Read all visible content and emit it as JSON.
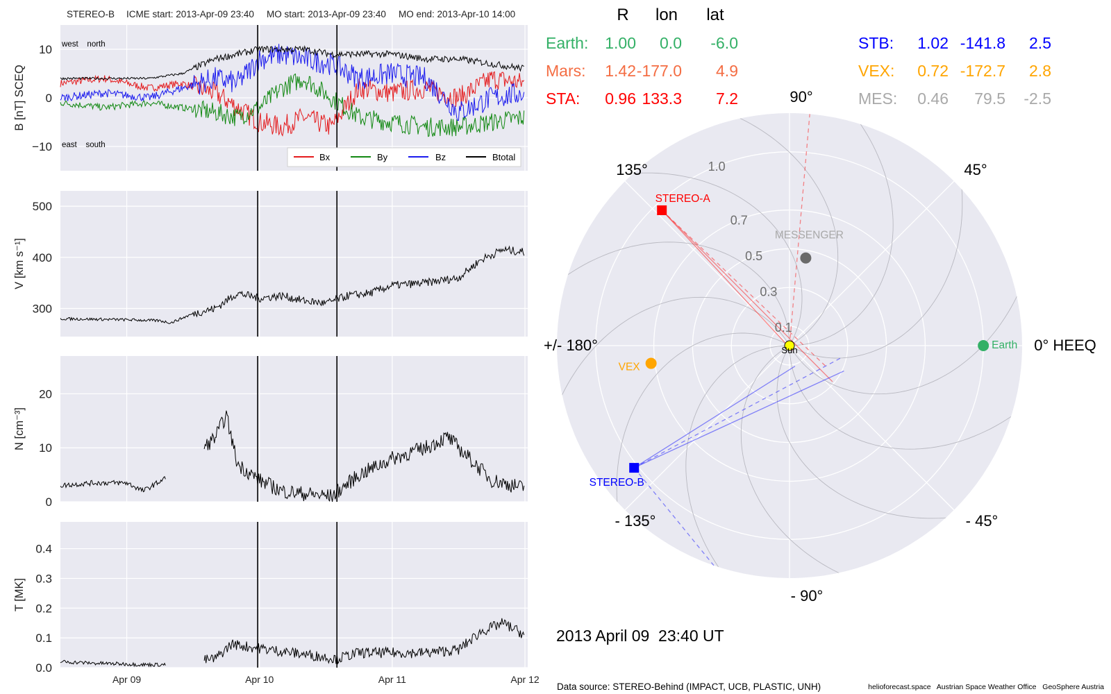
{
  "header": {
    "spacecraft": "STEREO-B",
    "icme_start": "ICME start: 2013-Apr-09 23:40",
    "mo_start": "MO start: 2013-Apr-09 23:40",
    "mo_end": "MO end: 2013-Apr-10 14:00"
  },
  "footer": {
    "timestamp": "2013 April 09  23:40 UT",
    "data_source": "Data source: STEREO-Behind (IMPACT, UCB, PLASTIC, UNH)",
    "credits": "helioforecast.space   Austrian Space Weather Office   GeoSphere Austria"
  },
  "colors": {
    "panel_bg": "#e9e9f1",
    "bx": "#e41a1c",
    "by": "#118811",
    "bz": "#1a1aee",
    "btotal": "#000000",
    "earth": "#33b066",
    "mars": "#f46d43",
    "sta": "#ff0000",
    "stb": "#0000ff",
    "vex": "#ffa500",
    "mes": "#a9a9a9",
    "sun": "#ffff00"
  },
  "chart_data": [
    {
      "type": "line",
      "name": "magnetic-field",
      "ylabel": "B [nT] SCEQ",
      "ylim": [
        -15,
        15
      ],
      "yticks": [
        -10,
        0,
        10
      ],
      "ytick_labels": [
        "−10",
        "0",
        "10"
      ],
      "annotations": {
        "top_left": "west    north",
        "bottom_left": "east    south"
      },
      "legend": [
        "Bx",
        "By",
        "Bz",
        "Btotal"
      ],
      "legend_position": "lower-right",
      "grid": true,
      "x_range_days": "2013-04-08 12:00 to 2013-04-12 00:00",
      "xticks": [
        "Apr 09",
        "Apr 10",
        "Apr 11",
        "Apr 12"
      ],
      "vlines": [
        "2013-04-09 23:40",
        "2013-04-10 14:00"
      ],
      "series": [
        {
          "name": "Bx",
          "x": [
            "04-08 12:00",
            "04-08 20:00",
            "04-09 04:00",
            "04-09 10:00",
            "04-09 16:00",
            "04-09 20:00",
            "04-10 00:00",
            "04-10 04:00",
            "04-10 08:00",
            "04-10 13:00",
            "04-10 18:00",
            "04-11 00:00",
            "04-11 06:00",
            "04-11 12:00",
            "04-11 18:00",
            "04-12 00:00"
          ],
          "y": [
            3,
            4,
            2,
            3,
            1,
            -2,
            -5,
            -6,
            -4,
            -6,
            2,
            1,
            2,
            0,
            4,
            3
          ]
        },
        {
          "name": "By",
          "x": [
            "04-08 12:00",
            "04-08 20:00",
            "04-09 04:00",
            "04-09 10:00",
            "04-09 16:00",
            "04-09 20:00",
            "04-10 00:00",
            "04-10 04:00",
            "04-10 08:00",
            "04-10 13:00",
            "04-10 18:00",
            "04-11 00:00",
            "04-11 06:00",
            "04-11 12:00",
            "04-11 18:00",
            "04-12 00:00"
          ],
          "y": [
            -1,
            -2,
            -1,
            -2,
            -3,
            -4,
            -2,
            2,
            4,
            0,
            -4,
            -5,
            -6,
            -6,
            -5,
            -4
          ]
        },
        {
          "name": "Bz",
          "x": [
            "04-08 12:00",
            "04-08 20:00",
            "04-09 04:00",
            "04-09 10:00",
            "04-09 16:00",
            "04-09 20:00",
            "04-10 00:00",
            "04-10 04:00",
            "04-10 08:00",
            "04-10 13:00",
            "04-10 18:00",
            "04-11 00:00",
            "04-11 06:00",
            "04-11 12:00",
            "04-11 18:00",
            "04-12 00:00"
          ],
          "y": [
            0,
            1,
            0,
            2,
            4,
            3,
            8,
            9,
            8,
            7,
            4,
            5,
            4,
            -3,
            0,
            1
          ]
        },
        {
          "name": "Btotal",
          "x": [
            "04-08 12:00",
            "04-08 20:00",
            "04-09 04:00",
            "04-09 10:00",
            "04-09 16:00",
            "04-09 20:00",
            "04-10 00:00",
            "04-10 04:00",
            "04-10 08:00",
            "04-10 13:00",
            "04-10 18:00",
            "04-11 00:00",
            "04-11 06:00",
            "04-11 12:00",
            "04-11 18:00",
            "04-12 00:00"
          ],
          "y": [
            4,
            4,
            4,
            5,
            8,
            9,
            10,
            10,
            10,
            9,
            9,
            9,
            8,
            8,
            7,
            6
          ]
        }
      ]
    },
    {
      "type": "line",
      "name": "speed",
      "ylabel": "V [km s⁻¹]",
      "ylim": [
        245,
        530
      ],
      "yticks": [
        300,
        400,
        500
      ],
      "ytick_labels": [
        "300",
        "400",
        "500"
      ],
      "grid": true,
      "vlines": [
        "2013-04-09 23:40",
        "2013-04-10 14:00"
      ],
      "series": [
        {
          "name": "V",
          "x": [
            "04-08 12:00",
            "04-08 18:00",
            "04-09 00:00",
            "04-09 06:00",
            "04-09 08:00",
            "04-09 12:00",
            "04-09 16:00",
            "04-09 20:00",
            "04-10 00:00",
            "04-10 04:00",
            "04-10 08:00",
            "04-10 12:00",
            "04-10 16:00",
            "04-10 20:00",
            "04-11 00:00",
            "04-11 06:00",
            "04-11 12:00",
            "04-11 16:00",
            "04-11 20:00",
            "04-12 00:00"
          ],
          "y": [
            280,
            279,
            278,
            276,
            272,
            290,
            300,
            330,
            320,
            325,
            315,
            310,
            325,
            330,
            345,
            350,
            360,
            395,
            415,
            410
          ]
        }
      ]
    },
    {
      "type": "line",
      "name": "density",
      "ylabel": "N [cm⁻³]",
      "ylim": [
        0,
        27
      ],
      "yticks": [
        0,
        10,
        20
      ],
      "ytick_labels": [
        "0",
        "10",
        "20"
      ],
      "grid": true,
      "vlines": [
        "2013-04-09 23:40",
        "2013-04-10 14:00"
      ],
      "series": [
        {
          "name": "N",
          "x": [
            "04-08 12:00",
            "04-08 18:00",
            "04-09 00:00",
            "04-09 03:00",
            "04-09 08:00",
            "04-09 12:00",
            "04-09 16:00",
            "04-09 18:00",
            "04-09 20:00",
            "04-10 00:00",
            "04-10 04:00",
            "04-10 08:00",
            "04-10 13:00",
            "04-10 18:00",
            "04-11 00:00",
            "04-11 06:00",
            "04-11 10:00",
            "04-11 14:00",
            "04-11 18:00",
            "04-12 00:00"
          ],
          "y": [
            3,
            3.5,
            3.5,
            2,
            5,
            8,
            12,
            16,
            7,
            4,
            2,
            1.5,
            1,
            5,
            8,
            10,
            12,
            8,
            4,
            2.5
          ]
        }
      ]
    },
    {
      "type": "line",
      "name": "temperature",
      "ylabel": "T [MK]",
      "ylim": [
        0,
        0.49
      ],
      "yticks": [
        0,
        0.1,
        0.2,
        0.3,
        0.4
      ],
      "ytick_labels": [
        "0.0",
        "0.1",
        "0.2",
        "0.3",
        "0.4"
      ],
      "grid": true,
      "vlines": [
        "2013-04-09 23:40",
        "2013-04-10 14:00"
      ],
      "series": [
        {
          "name": "T",
          "x": [
            "04-08 12:00",
            "04-08 18:00",
            "04-09 00:00",
            "04-09 03:00",
            "04-09 08:00",
            "04-09 12:00",
            "04-09 16:00",
            "04-09 19:00",
            "04-09 22:00",
            "04-10 02:00",
            "04-10 06:00",
            "04-10 10:00",
            "04-10 14:00",
            "04-10 18:00",
            "04-11 00:00",
            "04-11 06:00",
            "04-11 12:00",
            "04-11 16:00",
            "04-11 20:00",
            "04-12 00:00"
          ],
          "y": [
            0.02,
            0.015,
            0.012,
            0.01,
            0.01,
            0.02,
            0.03,
            0.08,
            0.07,
            0.06,
            0.05,
            0.04,
            0.03,
            0.05,
            0.05,
            0.05,
            0.06,
            0.12,
            0.15,
            0.11
          ]
        }
      ]
    },
    {
      "type": "polar",
      "name": "spacecraft-positions",
      "title": "0° HEEQ",
      "angle_labels": [
        "0° HEEQ",
        "45°",
        "90°",
        "135°",
        "+/- 180°",
        "- 135°",
        "- 90°",
        "- 45°"
      ],
      "radial_labels": [
        "0.1",
        "0.3",
        "0.5",
        "0.7",
        "1.0"
      ],
      "radial_max_au": 1.2,
      "table_headers": [
        "R",
        "lon",
        "lat"
      ],
      "positions": [
        {
          "name": "Earth",
          "label": "Earth:",
          "R": "1.00",
          "lon": "0.0",
          "lat": "-6.0",
          "r_au": 1.0,
          "lon_deg": 0.0,
          "marker": "circle",
          "plot_label": "Earth"
        },
        {
          "name": "Mars",
          "label": "Mars:",
          "R": "1.42",
          "lon": "-177.0",
          "lat": "4.9",
          "r_au": 1.42,
          "lon_deg": -177.0,
          "marker": "none",
          "plot_label": ""
        },
        {
          "name": "STA",
          "label": "STA:",
          "R": "0.96",
          "lon": "133.3",
          "lat": "7.2",
          "r_au": 0.96,
          "lon_deg": 133.3,
          "marker": "square",
          "plot_label": "STEREO-A"
        },
        {
          "name": "STB",
          "label": "STB:",
          "R": "1.02",
          "lon": "-141.8",
          "lat": "2.5",
          "r_au": 1.02,
          "lon_deg": -141.8,
          "marker": "square",
          "plot_label": "STEREO-B"
        },
        {
          "name": "VEX",
          "label": "VEX:",
          "R": "0.72",
          "lon": "-172.7",
          "lat": "2.8",
          "r_au": 0.72,
          "lon_deg": -172.7,
          "marker": "circle",
          "plot_label": "VEX"
        },
        {
          "name": "MES",
          "label": "MES:",
          "R": "0.46",
          "lon": "79.5",
          "lat": "-2.5",
          "r_au": 0.46,
          "lon_deg": 79.5,
          "marker": "circle",
          "plot_label": "MESSENGER"
        }
      ],
      "sun_label": "Sun"
    }
  ]
}
